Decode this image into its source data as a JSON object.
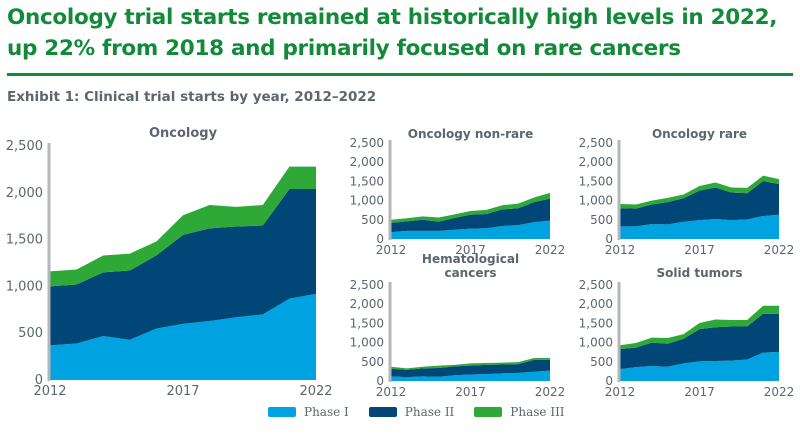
{
  "header": {
    "title_line1": "Oncology trial starts remained at historically high levels in 2022,",
    "title_line2": "up 22% from 2018 and primarily focused on rare cancers",
    "exhibit": "Exhibit 1: Clinical trial starts by year, 2012–2022"
  },
  "colors": {
    "phase1": "#00a3e0",
    "phase2": "#004677",
    "phase3": "#2ea836",
    "axis": "#b3b6bb",
    "text": "#5b6670"
  },
  "legend": [
    {
      "label": "Phase I",
      "color": "#00a3e0"
    },
    {
      "label": "Phase II",
      "color": "#004677"
    },
    {
      "label": "Phase III",
      "color": "#2ea836"
    }
  ],
  "chart_data": [
    {
      "type": "area",
      "stacked": true,
      "title": "Oncology",
      "x": [
        2012,
        2013,
        2014,
        2015,
        2016,
        2017,
        2018,
        2019,
        2020,
        2021,
        2022
      ],
      "xticks": [
        "2012",
        "2017",
        "2022"
      ],
      "yticks": [
        "0",
        "500",
        "1,000",
        "1,500",
        "2,000",
        "2,500"
      ],
      "ylim": [
        0,
        2500
      ],
      "series": [
        {
          "name": "Phase I",
          "values": [
            370,
            390,
            470,
            430,
            550,
            600,
            630,
            670,
            700,
            870,
            920
          ]
        },
        {
          "name": "Phase II",
          "values": [
            630,
            630,
            680,
            740,
            780,
            950,
            990,
            970,
            950,
            1170,
            1120
          ]
        },
        {
          "name": "Phase III",
          "values": [
            160,
            160,
            180,
            180,
            150,
            210,
            250,
            210,
            220,
            240,
            240
          ]
        }
      ]
    },
    {
      "type": "area",
      "stacked": true,
      "title": "Oncology non-rare",
      "x": [
        2012,
        2013,
        2014,
        2015,
        2016,
        2017,
        2018,
        2019,
        2020,
        2021,
        2022
      ],
      "xticks": [
        "2012",
        "2017",
        "2022"
      ],
      "yticks": [
        "0",
        "500",
        "1,000",
        "1,500",
        "2,000",
        "2,500"
      ],
      "ylim": [
        0,
        2500
      ],
      "series": [
        {
          "name": "Phase I",
          "values": [
            180,
            210,
            210,
            210,
            240,
            270,
            280,
            340,
            360,
            440,
            480
          ]
        },
        {
          "name": "Phase II",
          "values": [
            240,
            250,
            290,
            240,
            310,
            360,
            370,
            430,
            440,
            520,
            570
          ]
        },
        {
          "name": "Phase III",
          "values": [
            80,
            80,
            90,
            110,
            90,
            100,
            110,
            110,
            120,
            120,
            150
          ]
        }
      ]
    },
    {
      "type": "area",
      "stacked": true,
      "title": "Oncology rare",
      "x": [
        2012,
        2013,
        2014,
        2015,
        2016,
        2017,
        2018,
        2019,
        2020,
        2021,
        2022
      ],
      "xticks": [
        "2012",
        "2017",
        "2022"
      ],
      "yticks": [
        "0",
        "500",
        "1,000",
        "1,500",
        "2,000",
        "2,500"
      ],
      "ylim": [
        0,
        2500
      ],
      "series": [
        {
          "name": "Phase I",
          "values": [
            330,
            330,
            390,
            380,
            450,
            490,
            520,
            490,
            510,
            600,
            630
          ]
        },
        {
          "name": "Phase II",
          "values": [
            470,
            460,
            510,
            580,
            610,
            770,
            820,
            720,
            680,
            910,
            800
          ]
        },
        {
          "name": "Phase III",
          "values": [
            110,
            110,
            100,
            110,
            100,
            120,
            130,
            130,
            140,
            140,
            130
          ]
        }
      ]
    },
    {
      "type": "area",
      "stacked": true,
      "title": "Hematological cancers",
      "x": [
        2012,
        2013,
        2014,
        2015,
        2016,
        2017,
        2018,
        2019,
        2020,
        2021,
        2022
      ],
      "xticks": [
        "2012",
        "2017",
        "2022"
      ],
      "yticks": [
        "0",
        "500",
        "1,000",
        "1,500",
        "2,000",
        "2,500"
      ],
      "ylim": [
        0,
        2500
      ],
      "series": [
        {
          "name": "Phase I",
          "values": [
            120,
            100,
            120,
            110,
            150,
            170,
            180,
            200,
            210,
            240,
            270
          ]
        },
        {
          "name": "Phase II",
          "values": [
            200,
            190,
            210,
            230,
            230,
            230,
            240,
            230,
            230,
            310,
            280
          ]
        },
        {
          "name": "Phase III",
          "values": [
            50,
            40,
            40,
            60,
            40,
            60,
            50,
            50,
            50,
            50,
            50
          ]
        }
      ]
    },
    {
      "type": "area",
      "stacked": true,
      "title": "Solid tumors",
      "x": [
        2012,
        2013,
        2014,
        2015,
        2016,
        2017,
        2018,
        2019,
        2020,
        2021,
        2022
      ],
      "xticks": [
        "2012",
        "2017",
        "2022"
      ],
      "yticks": [
        "0",
        "500",
        "1,000",
        "1,500",
        "2,000",
        "2,500"
      ],
      "ylim": [
        0,
        2500
      ],
      "series": [
        {
          "name": "Phase I",
          "values": [
            310,
            360,
            390,
            370,
            460,
            510,
            520,
            530,
            560,
            740,
            760
          ]
        },
        {
          "name": "Phase II",
          "values": [
            520,
            510,
            610,
            600,
            640,
            840,
            880,
            890,
            860,
            1010,
            990
          ]
        },
        {
          "name": "Phase III",
          "values": [
            100,
            120,
            130,
            150,
            120,
            160,
            200,
            170,
            170,
            210,
            210
          ]
        }
      ]
    }
  ]
}
